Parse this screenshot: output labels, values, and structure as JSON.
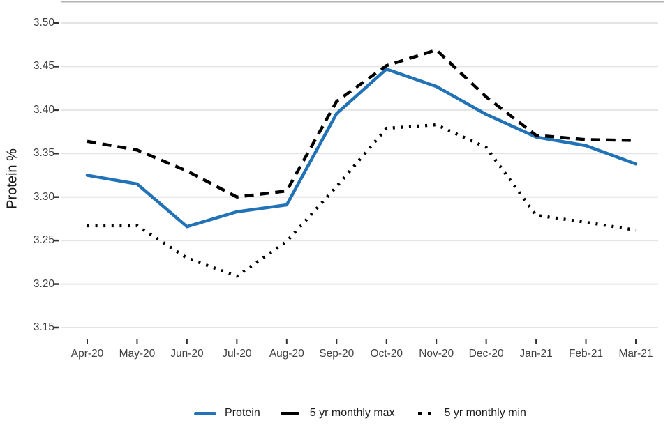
{
  "chart_data": {
    "type": "line",
    "title": "",
    "xlabel": "",
    "ylabel": "Protein %",
    "ylim": [
      3.15,
      3.5
    ],
    "yticks": [
      3.15,
      3.2,
      3.25,
      3.3,
      3.35,
      3.4,
      3.45,
      3.5
    ],
    "grid": "horizontal gridlines on, light gray",
    "legend_position": "bottom center",
    "categories": [
      "Apr-20",
      "May-20",
      "Jun-20",
      "Jul-20",
      "Aug-20",
      "Sep-20",
      "Oct-20",
      "Nov-20",
      "Dec-20",
      "Jan-21",
      "Feb-21",
      "Mar-21"
    ],
    "series": [
      {
        "name": "Protein",
        "style": "solid",
        "color": "#2172b6",
        "values": [
          3.325,
          3.315,
          3.266,
          3.283,
          3.291,
          3.396,
          3.447,
          3.427,
          3.395,
          3.369,
          3.359,
          3.338
        ]
      },
      {
        "name": "5 yr monthly max",
        "style": "dashed",
        "color": "#000000",
        "values": [
          3.364,
          3.354,
          3.33,
          3.3,
          3.307,
          3.41,
          3.451,
          3.469,
          3.415,
          3.371,
          3.366,
          3.365
        ]
      },
      {
        "name": "5 yr monthly min",
        "style": "dotted",
        "color": "#000000",
        "values": [
          3.267,
          3.267,
          3.23,
          3.209,
          3.249,
          3.312,
          3.379,
          3.383,
          3.357,
          3.279,
          3.271,
          3.262
        ]
      }
    ],
    "colors": {
      "protein_line": "#2172b6",
      "max_min_lines": "#000000",
      "gridline": "#e4e4e4",
      "top_border": "#b3b3b3",
      "tick_mark": "#333333",
      "axis_text": "#404040"
    }
  }
}
